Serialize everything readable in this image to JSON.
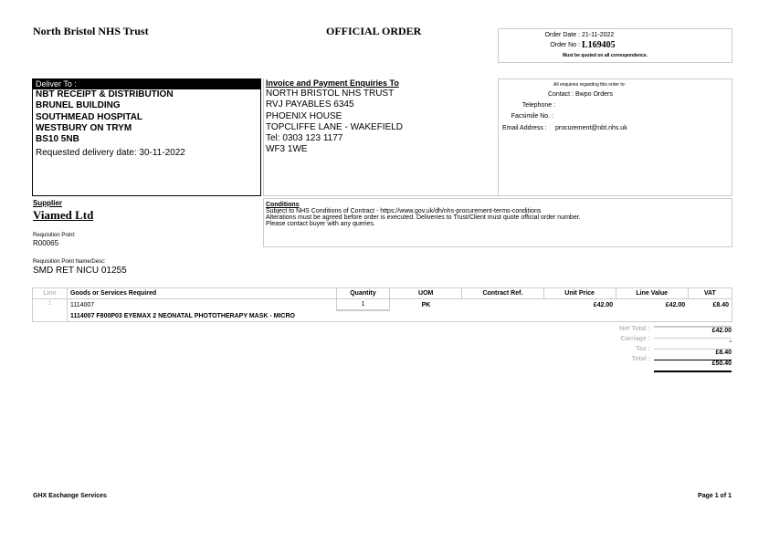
{
  "header": {
    "trust": "North Bristol NHS Trust",
    "title": "OFFICIAL ORDER",
    "order_date_label": "Order Date :",
    "order_date": "21-11-2022",
    "order_no_label": "Order No :",
    "order_no": "L169405",
    "quote_note": "Must be quoted on all correspondence."
  },
  "deliver": {
    "label": "Deliver To :",
    "lines": [
      "NBT RECEIPT & DISTRIBUTION",
      "BRUNEL BUILDING",
      "SOUTHMEAD HOSPITAL",
      "WESTBURY ON TRYM",
      "BS10 5NB"
    ],
    "requested": "Requested delivery date: 30-11-2022"
  },
  "invoice": {
    "label": "Invoice and Payment Enquiries To",
    "lines": [
      "NORTH BRISTOL NHS TRUST",
      "RVJ PAYABLES 6345",
      "PHOENIX HOUSE",
      "TOPCLIFFE LANE - WAKEFIELD",
      "Tel: 0303 123 1177",
      "WF3 1WE"
    ]
  },
  "enquiries": {
    "heading": "All enquiries regarding this order to:",
    "contact_label": "Contact :",
    "contact": "Bwpo Orders",
    "telephone_label": "Telephone :",
    "telephone": "",
    "fax_label": "Facsimile No. :",
    "fax": "",
    "email_label": "Email Address :",
    "email": "procurement@nbt.nhs.uk"
  },
  "supplier": {
    "label": "Supplier",
    "name": "Viamed Ltd",
    "req_point_label": "Requisition Point:",
    "req_point": "R00065",
    "req_name_label": "Requisition Point Name/Desc:",
    "req_name": "SMD RET NICU 01255"
  },
  "conditions": {
    "label": "Conditions",
    "lines": [
      "Subject to NHS Conditions of Contract - https://www.gov.uk/dh/nhs-procurement-terms-conditions",
      "Alterations must be agreed before order is executed. Deliveries to Trust/Client must quote official order number.",
      "Please contact buyer with any queries."
    ]
  },
  "table": {
    "headers": [
      "Line",
      "Goods or Services Required",
      "Quantity",
      "UOM",
      "Contract Ref.",
      "Unit Price",
      "Line Value",
      "VAT"
    ],
    "rows": [
      {
        "line": "1",
        "code": "1114007",
        "description": "1114007 F800P03 EYEMAX 2 NEONATAL PHOTOTHERAPY MASK - MICRO",
        "quantity": "1",
        "uom": "PK",
        "contract_ref": "",
        "unit_price": "£42.00",
        "line_value": "£42.00",
        "vat": "£8.40"
      }
    ]
  },
  "totals": {
    "net_label": "Net Total :",
    "net": "£42.00",
    "carriage_label": "Carriage :",
    "carriage": "-",
    "tax_label": "Tax :",
    "tax": "£8.40",
    "total_label": "Total :",
    "total": "£50.40"
  },
  "footer": {
    "left": "GHX Exchange Services",
    "right": "Page 1 of 1"
  }
}
